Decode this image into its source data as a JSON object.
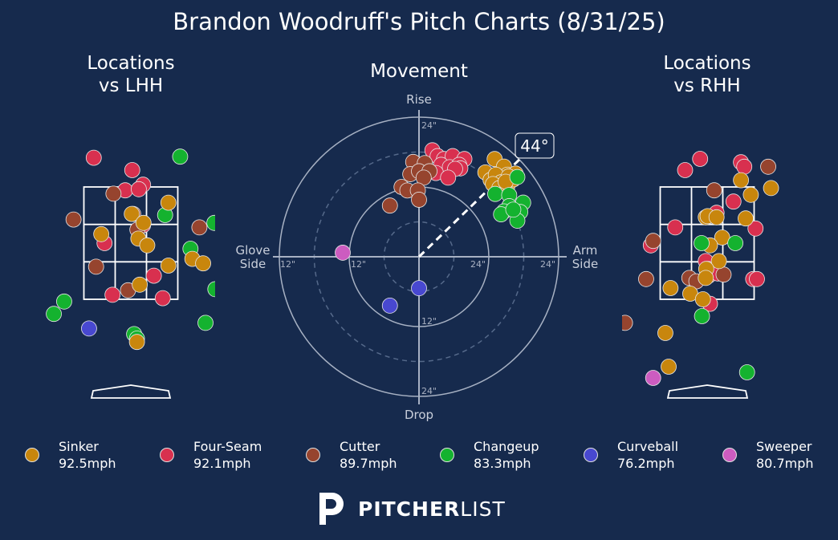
{
  "title": "Brandon Woodruff's Pitch Charts (8/31/25)",
  "panels": {
    "lhh": {
      "title_line1": "Locations",
      "title_line2": "vs LHH"
    },
    "movement": {
      "title": "Movement"
    },
    "rhh": {
      "title_line1": "Locations",
      "title_line2": "vs RHH"
    }
  },
  "movement_labels": {
    "rise": "Rise",
    "drop": "Drop",
    "glove_line1": "Glove",
    "glove_line2": "Side",
    "arm_line1": "Arm",
    "arm_line2": "Side",
    "ticks": [
      "24\"",
      "12\"",
      "12\"",
      "24\"",
      "24\"",
      "12\"",
      "24\""
    ],
    "arm_angle": "44°"
  },
  "pitch_types": [
    {
      "key": "sinker",
      "name": "Sinker",
      "velo": "92.5mph",
      "color": "#c8860d"
    },
    {
      "key": "fourseam",
      "name": "Four-Seam",
      "velo": "92.1mph",
      "color": "#d8304f"
    },
    {
      "key": "cutter",
      "name": "Cutter",
      "velo": "89.7mph",
      "color": "#96442e"
    },
    {
      "key": "changeup",
      "name": "Changeup",
      "velo": "83.3mph",
      "color": "#14b22f"
    },
    {
      "key": "curveball",
      "name": "Curveball",
      "velo": "76.2mph",
      "color": "#4848d0"
    },
    {
      "key": "sweeper",
      "name": "Sweeper",
      "velo": "80.7mph",
      "color": "#cc5cc0"
    }
  ],
  "brand": {
    "strong": "PITCHER",
    "light": "LIST"
  },
  "chart_data": [
    {
      "type": "scatter",
      "title": "Locations vs LHH",
      "units": "zone fraction (x: -1 left edge .. 1 right edge; y: 0 bottom .. 1 top)",
      "points": [
        {
          "pitch": "fourseam",
          "x": -0.79,
          "y": 1.26
        },
        {
          "pitch": "fourseam",
          "x": 0.03,
          "y": 1.15
        },
        {
          "pitch": "fourseam",
          "x": 0.26,
          "y": 1.02
        },
        {
          "pitch": "fourseam",
          "x": -0.12,
          "y": 0.97
        },
        {
          "pitch": "fourseam",
          "x": 0.17,
          "y": 0.98
        },
        {
          "pitch": "fourseam",
          "x": 0.26,
          "y": 0.66
        },
        {
          "pitch": "fourseam",
          "x": -0.56,
          "y": 0.5
        },
        {
          "pitch": "fourseam",
          "x": 0.49,
          "y": 0.21
        },
        {
          "pitch": "fourseam",
          "x": -0.39,
          "y": 0.04
        },
        {
          "pitch": "fourseam",
          "x": 0.68,
          "y": 0.01
        },
        {
          "pitch": "changeup",
          "x": 1.05,
          "y": 1.27
        },
        {
          "pitch": "changeup",
          "x": 0.73,
          "y": 0.75
        },
        {
          "pitch": "changeup",
          "x": 1.78,
          "y": 0.68
        },
        {
          "pitch": "changeup",
          "x": 1.27,
          "y": 0.45
        },
        {
          "pitch": "changeup",
          "x": 1.8,
          "y": 0.09
        },
        {
          "pitch": "changeup",
          "x": -1.42,
          "y": -0.02
        },
        {
          "pitch": "changeup",
          "x": -1.64,
          "y": -0.13
        },
        {
          "pitch": "changeup",
          "x": 0.07,
          "y": -0.31
        },
        {
          "pitch": "changeup",
          "x": 0.13,
          "y": -0.35
        },
        {
          "pitch": "changeup",
          "x": 1.59,
          "y": -0.21
        },
        {
          "pitch": "cutter",
          "x": -0.37,
          "y": 0.94
        },
        {
          "pitch": "cutter",
          "x": 0.05,
          "y": 0.76
        },
        {
          "pitch": "cutter",
          "x": -1.22,
          "y": 0.71
        },
        {
          "pitch": "cutter",
          "x": 1.46,
          "y": 0.64
        },
        {
          "pitch": "cutter",
          "x": 0.14,
          "y": 0.62
        },
        {
          "pitch": "cutter",
          "x": -0.74,
          "y": 0.29
        },
        {
          "pitch": "cutter",
          "x": -0.06,
          "y": 0.08
        },
        {
          "pitch": "sinker",
          "x": 0.8,
          "y": 0.86
        },
        {
          "pitch": "sinker",
          "x": 0.02,
          "y": 0.76
        },
        {
          "pitch": "sinker",
          "x": 0.27,
          "y": 0.68
        },
        {
          "pitch": "sinker",
          "x": -0.63,
          "y": 0.58
        },
        {
          "pitch": "sinker",
          "x": 0.16,
          "y": 0.54
        },
        {
          "pitch": "sinker",
          "x": 0.35,
          "y": 0.48
        },
        {
          "pitch": "sinker",
          "x": 1.31,
          "y": 0.36
        },
        {
          "pitch": "sinker",
          "x": 1.54,
          "y": 0.32
        },
        {
          "pitch": "sinker",
          "x": 0.8,
          "y": 0.3
        },
        {
          "pitch": "sinker",
          "x": 0.19,
          "y": 0.13
        },
        {
          "pitch": "sinker",
          "x": 0.13,
          "y": -0.38
        },
        {
          "pitch": "curveball",
          "x": -0.89,
          "y": -0.26
        }
      ]
    },
    {
      "type": "scatter",
      "title": "Movement",
      "units": "inches (x: + arm side, y: + rise)",
      "xlim": [
        -24,
        24
      ],
      "ylim": [
        -24,
        24
      ],
      "arm_angle_deg": 44,
      "points": [
        {
          "pitch": "fourseam",
          "x": 2.3,
          "y": 18.3
        },
        {
          "pitch": "fourseam",
          "x": 3.2,
          "y": 17.3
        },
        {
          "pitch": "fourseam",
          "x": 4.3,
          "y": 16.8
        },
        {
          "pitch": "fourseam",
          "x": 5.8,
          "y": 17.3
        },
        {
          "pitch": "fourseam",
          "x": 7.8,
          "y": 16.8
        },
        {
          "pitch": "fourseam",
          "x": 3.8,
          "y": 15.8
        },
        {
          "pitch": "fourseam",
          "x": 5.3,
          "y": 15.4
        },
        {
          "pitch": "fourseam",
          "x": 6.9,
          "y": 15.8
        },
        {
          "pitch": "fourseam",
          "x": 7.1,
          "y": 15.2
        },
        {
          "pitch": "fourseam",
          "x": 2.9,
          "y": 14.4
        },
        {
          "pitch": "fourseam",
          "x": 6.2,
          "y": 15.1
        },
        {
          "pitch": "fourseam",
          "x": 5,
          "y": 13.6
        },
        {
          "pitch": "sinker",
          "x": 13,
          "y": 16.8
        },
        {
          "pitch": "sinker",
          "x": 14.6,
          "y": 15.5
        },
        {
          "pitch": "sinker",
          "x": 15.2,
          "y": 14.1
        },
        {
          "pitch": "sinker",
          "x": 16.6,
          "y": 14.3
        },
        {
          "pitch": "sinker",
          "x": 11.4,
          "y": 14.5
        },
        {
          "pitch": "sinker",
          "x": 12.3,
          "y": 13.2
        },
        {
          "pitch": "sinker",
          "x": 13.2,
          "y": 14.1
        },
        {
          "pitch": "sinker",
          "x": 14.1,
          "y": 12.8
        },
        {
          "pitch": "sinker",
          "x": 12.7,
          "y": 12.5
        },
        {
          "pitch": "sinker",
          "x": 13.8,
          "y": 11.8
        },
        {
          "pitch": "sinker",
          "x": 15.2,
          "y": 12.2
        },
        {
          "pitch": "sinker",
          "x": 16.2,
          "y": 13.3
        },
        {
          "pitch": "sinker",
          "x": 15.4,
          "y": 13.8
        },
        {
          "pitch": "sinker",
          "x": 14.9,
          "y": 12.9
        },
        {
          "pitch": "cutter",
          "x": -1,
          "y": 16.3
        },
        {
          "pitch": "cutter",
          "x": 1,
          "y": 16.1
        },
        {
          "pitch": "cutter",
          "x": -1.5,
          "y": 14.2
        },
        {
          "pitch": "cutter",
          "x": 0,
          "y": 14.7
        },
        {
          "pitch": "cutter",
          "x": 1.8,
          "y": 14.7
        },
        {
          "pitch": "cutter",
          "x": 0.8,
          "y": 13.6
        },
        {
          "pitch": "cutter",
          "x": -3,
          "y": 12
        },
        {
          "pitch": "cutter",
          "x": -2,
          "y": 11.4
        },
        {
          "pitch": "cutter",
          "x": -0.2,
          "y": 11.4
        },
        {
          "pitch": "cutter",
          "x": 0,
          "y": 9.8
        },
        {
          "pitch": "cutter",
          "x": -5,
          "y": 8.8
        },
        {
          "pitch": "changeup",
          "x": 16.9,
          "y": 13.7
        },
        {
          "pitch": "changeup",
          "x": 13.1,
          "y": 10.8
        },
        {
          "pitch": "changeup",
          "x": 15.5,
          "y": 10.6
        },
        {
          "pitch": "changeup",
          "x": 17.9,
          "y": 9.3
        },
        {
          "pitch": "changeup",
          "x": 15.5,
          "y": 8.7
        },
        {
          "pitch": "changeup",
          "x": 14.6,
          "y": 7.8
        },
        {
          "pitch": "changeup",
          "x": 17.4,
          "y": 7.7
        },
        {
          "pitch": "changeup",
          "x": 16.9,
          "y": 6.2
        },
        {
          "pitch": "changeup",
          "x": 14.1,
          "y": 7.3
        },
        {
          "pitch": "changeup",
          "x": 16.2,
          "y": 8.1
        },
        {
          "pitch": "curveball",
          "x": 0,
          "y": -5.4
        },
        {
          "pitch": "curveball",
          "x": -5,
          "y": -8.4
        },
        {
          "pitch": "sweeper",
          "x": -13.1,
          "y": 0.7
        }
      ]
    },
    {
      "type": "scatter",
      "title": "Locations vs RHH",
      "units": "zone fraction (x: -1 left edge .. 1 right edge; y: 0 bottom .. 1 top)",
      "points": [
        {
          "pitch": "fourseam",
          "x": -0.15,
          "y": 1.25
        },
        {
          "pitch": "fourseam",
          "x": -0.47,
          "y": 1.15
        },
        {
          "pitch": "fourseam",
          "x": 0.72,
          "y": 1.22
        },
        {
          "pitch": "fourseam",
          "x": 0.79,
          "y": 1.18
        },
        {
          "pitch": "fourseam",
          "x": 0.56,
          "y": 0.87
        },
        {
          "pitch": "fourseam",
          "x": 0.2,
          "y": 0.77
        },
        {
          "pitch": "fourseam",
          "x": -0.68,
          "y": 0.64
        },
        {
          "pitch": "fourseam",
          "x": 1.03,
          "y": 0.63
        },
        {
          "pitch": "fourseam",
          "x": -1.2,
          "y": 0.48
        },
        {
          "pitch": "fourseam",
          "x": -0.03,
          "y": 0.34
        },
        {
          "pitch": "fourseam",
          "x": 0.02,
          "y": 0.27
        },
        {
          "pitch": "fourseam",
          "x": 0.03,
          "y": 0.21
        },
        {
          "pitch": "fourseam",
          "x": 0.23,
          "y": 0.23
        },
        {
          "pitch": "fourseam",
          "x": 0.98,
          "y": 0.18
        },
        {
          "pitch": "fourseam",
          "x": 1.06,
          "y": 0.18
        },
        {
          "pitch": "fourseam",
          "x": 0.06,
          "y": -0.04
        },
        {
          "pitch": "cutter",
          "x": 1.3,
          "y": 1.18
        },
        {
          "pitch": "cutter",
          "x": 0.15,
          "y": 0.97
        },
        {
          "pitch": "cutter",
          "x": -1.15,
          "y": 0.52
        },
        {
          "pitch": "cutter",
          "x": 0.35,
          "y": 0.22
        },
        {
          "pitch": "cutter",
          "x": -0.38,
          "y": 0.19
        },
        {
          "pitch": "cutter",
          "x": -0.23,
          "y": 0.16
        },
        {
          "pitch": "cutter",
          "x": -1.3,
          "y": 0.18
        },
        {
          "pitch": "cutter",
          "x": -1.75,
          "y": -0.21
        },
        {
          "pitch": "sinker",
          "x": 0.72,
          "y": 1.06
        },
        {
          "pitch": "sinker",
          "x": 0.93,
          "y": 0.93
        },
        {
          "pitch": "sinker",
          "x": 1.36,
          "y": 0.99
        },
        {
          "pitch": "sinker",
          "x": -0.03,
          "y": 0.73
        },
        {
          "pitch": "sinker",
          "x": 0.01,
          "y": 0.74
        },
        {
          "pitch": "sinker",
          "x": 0.2,
          "y": 0.73
        },
        {
          "pitch": "sinker",
          "x": 0.82,
          "y": 0.72
        },
        {
          "pitch": "sinker",
          "x": 0.32,
          "y": 0.55
        },
        {
          "pitch": "sinker",
          "x": 0.06,
          "y": 0.48
        },
        {
          "pitch": "sinker",
          "x": 0.25,
          "y": 0.34
        },
        {
          "pitch": "sinker",
          "x": -0.02,
          "y": 0.27
        },
        {
          "pitch": "sinker",
          "x": -0.03,
          "y": 0.19
        },
        {
          "pitch": "sinker",
          "x": -0.78,
          "y": 0.1
        },
        {
          "pitch": "sinker",
          "x": -0.36,
          "y": 0.05
        },
        {
          "pitch": "sinker",
          "x": -0.09,
          "y": 0.0
        },
        {
          "pitch": "sinker",
          "x": -0.89,
          "y": -0.3
        },
        {
          "pitch": "sinker",
          "x": -0.82,
          "y": -0.6
        },
        {
          "pitch": "changeup",
          "x": -0.12,
          "y": 0.5
        },
        {
          "pitch": "changeup",
          "x": 0.6,
          "y": 0.5
        },
        {
          "pitch": "changeup",
          "x": -0.11,
          "y": -0.15
        },
        {
          "pitch": "changeup",
          "x": 0.85,
          "y": -0.65
        },
        {
          "pitch": "sweeper",
          "x": -1.15,
          "y": -0.7
        }
      ]
    }
  ]
}
